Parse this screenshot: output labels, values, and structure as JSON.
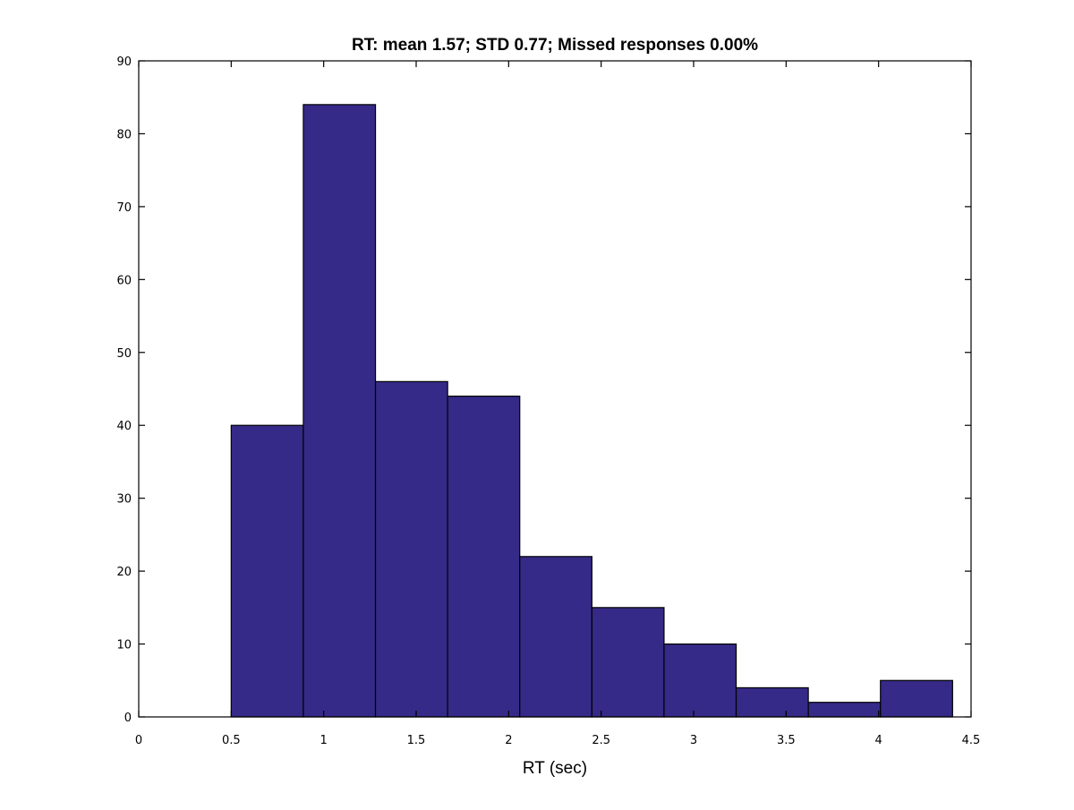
{
  "chart_data": {
    "type": "bar",
    "title": "RT: mean 1.57; STD 0.77; Missed responses 0.00%",
    "xlabel": "RT (sec)",
    "ylabel": "",
    "xlim": [
      0,
      4.5
    ],
    "ylim": [
      0,
      90
    ],
    "xticks": [
      "0",
      "0.5",
      "1",
      "1.5",
      "2",
      "2.5",
      "3",
      "3.5",
      "4",
      "4.5"
    ],
    "yticks": [
      "0",
      "10",
      "20",
      "30",
      "40",
      "50",
      "60",
      "70",
      "80",
      "90"
    ],
    "grid": false,
    "bar_color": "#352a87",
    "bins": [
      {
        "x0": 0.5,
        "x1": 0.89,
        "value": 40
      },
      {
        "x0": 0.89,
        "x1": 1.28,
        "value": 84
      },
      {
        "x0": 1.28,
        "x1": 1.67,
        "value": 46
      },
      {
        "x0": 1.67,
        "x1": 2.06,
        "value": 44
      },
      {
        "x0": 2.06,
        "x1": 2.45,
        "value": 22
      },
      {
        "x0": 2.45,
        "x1": 2.84,
        "value": 15
      },
      {
        "x0": 2.84,
        "x1": 3.23,
        "value": 10
      },
      {
        "x0": 3.23,
        "x1": 3.62,
        "value": 4
      },
      {
        "x0": 3.62,
        "x1": 4.01,
        "value": 2
      },
      {
        "x0": 4.01,
        "x1": 4.4,
        "value": 5
      }
    ]
  }
}
